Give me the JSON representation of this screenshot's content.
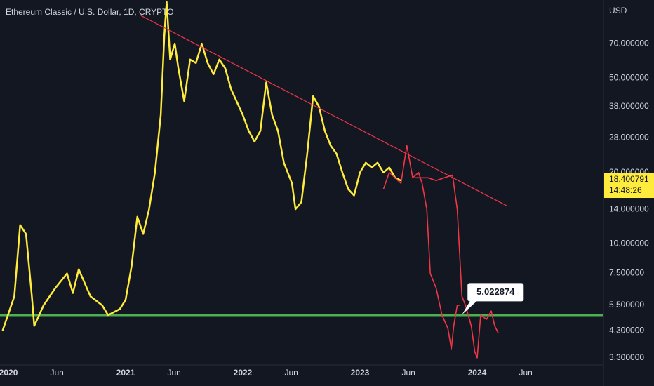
{
  "chart_data": {
    "type": "line",
    "title": "Ethereum Classic / U.S. Dollar, 1D, CRYPTO",
    "y_unit": "USD",
    "log_scale": true,
    "grid": false,
    "xlim": [
      2019.928,
      2025.078
    ],
    "ylim": [
      3.08,
      107
    ],
    "xticks": [
      {
        "value": 2020,
        "label": "2020"
      },
      {
        "value": 2020.414,
        "label": "Jun"
      },
      {
        "value": 2021,
        "label": "2021"
      },
      {
        "value": 2021.414,
        "label": "Jun"
      },
      {
        "value": 2022,
        "label": "2022"
      },
      {
        "value": 2022.414,
        "label": "Jun"
      },
      {
        "value": 2023,
        "label": "2023"
      },
      {
        "value": 2023.414,
        "label": "Jun"
      },
      {
        "value": 2024,
        "label": "2024"
      },
      {
        "value": 2024.414,
        "label": "Jun"
      }
    ],
    "yticks": [
      {
        "value": 70,
        "label": "70.000000"
      },
      {
        "value": 50,
        "label": "50.000000"
      },
      {
        "value": 38,
        "label": "38.000000"
      },
      {
        "value": 28,
        "label": "28.000000"
      },
      {
        "value": 20,
        "label": "20.000000"
      },
      {
        "value": 14,
        "label": "14.000000"
      },
      {
        "value": 10,
        "label": "10.000000"
      },
      {
        "value": 7.5,
        "label": "7.500000"
      },
      {
        "value": 5.5,
        "label": "5.500000"
      },
      {
        "value": 4.3,
        "label": "4.300000"
      },
      {
        "value": 3.3,
        "label": "3.300000"
      }
    ],
    "series": [
      {
        "color": "#ffeb3b",
        "x": [
          2019.95,
          2020.05,
          2020.1,
          2020.15,
          2020.2,
          2020.22,
          2020.3,
          2020.4,
          2020.5,
          2020.55,
          2020.6,
          2020.7,
          2020.8,
          2020.85,
          2020.95,
          2021.0,
          2021.05,
          2021.1,
          2021.15,
          2021.2,
          2021.25,
          2021.3,
          2021.33,
          2021.35,
          2021.38,
          2021.42,
          2021.45,
          2021.5,
          2021.55,
          2021.6,
          2021.65,
          2021.7,
          2021.75,
          2021.8,
          2021.85,
          2021.9,
          2022.0,
          2022.05,
          2022.1,
          2022.15,
          2022.2,
          2022.25,
          2022.3,
          2022.35,
          2022.42,
          2022.45,
          2022.5,
          2022.55,
          2022.6,
          2022.65,
          2022.7,
          2022.75,
          2022.8,
          2022.85,
          2022.9,
          2022.95,
          2023.0,
          2023.05,
          2023.1,
          2023.15,
          2023.2,
          2023.25,
          2023.3,
          2023.35
        ],
        "values": [
          4.3,
          6,
          12,
          11,
          6,
          4.5,
          5.5,
          6.5,
          7.5,
          6.2,
          7.8,
          6,
          5.5,
          5,
          5.3,
          5.8,
          8,
          13,
          11,
          14,
          20,
          35,
          75,
          105,
          60,
          70,
          55,
          40,
          60,
          58,
          70,
          58,
          52,
          60,
          55,
          45,
          35,
          30,
          27,
          30,
          48,
          35,
          30,
          22,
          18,
          14,
          15,
          24,
          42,
          38,
          30,
          26,
          24,
          20,
          17,
          16,
          20,
          22,
          21,
          22,
          20,
          21,
          19,
          18.5
        ]
      },
      {
        "color": "#f23645",
        "x": [
          2023.2,
          2023.25,
          2023.3,
          2023.35,
          2023.4,
          2023.45,
          2023.5,
          2023.53,
          2023.57,
          2023.6,
          2023.65,
          2023.7,
          2023.75,
          2023.78,
          2023.8,
          2023.83,
          2023.85
        ],
        "values": [
          17,
          20,
          19,
          18,
          26,
          19,
          20,
          18,
          14,
          7.5,
          6.5,
          5,
          4.4,
          3.6,
          4.5,
          5.5,
          5.5
        ]
      },
      {
        "color": "#f23645",
        "x": [
          2023.47,
          2023.58,
          2023.65,
          2023.72,
          2023.79,
          2023.83,
          2023.87,
          2023.9,
          2023.95,
          2023.98,
          2024.0,
          2024.03,
          2024.08,
          2024.12,
          2024.15,
          2024.18
        ],
        "values": [
          19,
          19,
          18.5,
          19,
          19.5,
          14,
          6,
          5.5,
          4.5,
          3.5,
          3.3,
          5,
          4.8,
          5.2,
          4.5,
          4.2
        ]
      }
    ],
    "trendline": {
      "color": "#f23645",
      "x": [
        2021.13,
        2024.25
      ],
      "values": [
        92,
        14.5
      ]
    },
    "hline": {
      "color": "#4caf50",
      "value": 5.0
    },
    "callout": {
      "x": 2023.87,
      "value": 5.022874
    },
    "price_label": {
      "value": 18.400791,
      "time": "14:48:26"
    }
  }
}
